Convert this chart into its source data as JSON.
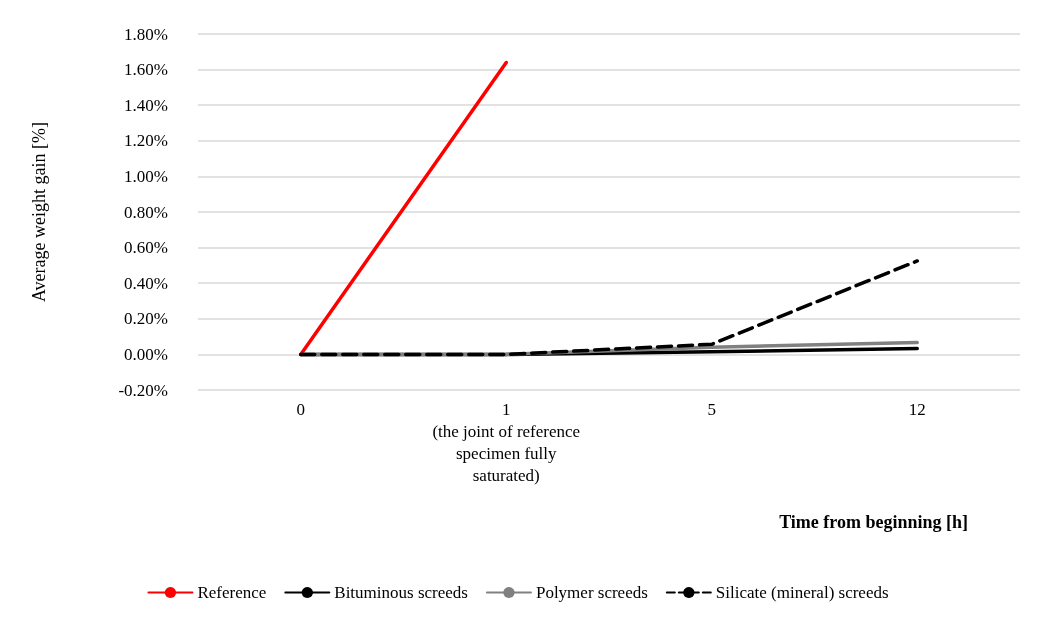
{
  "chart_data": {
    "type": "line",
    "xlabel": "Time from beginning [h]",
    "ylabel": "Average weight gain [%]",
    "categories": [
      "0",
      "1\n(the joint of reference\nspecimen fully\nsaturated)",
      "5",
      "12"
    ],
    "series": [
      {
        "name": "Reference",
        "color": "#ff0000",
        "values": [
          0,
          1.64,
          null,
          null
        ],
        "line_style": "solid"
      },
      {
        "name": "Bituminous screeds",
        "color": "#000000",
        "values": [
          0,
          0,
          0.015,
          0.033
        ],
        "line_style": "solid"
      },
      {
        "name": "Polymer screeds",
        "color": "#808080",
        "values": [
          0,
          0,
          0.04,
          0.067
        ],
        "line_style": "solid"
      },
      {
        "name": "Silicate (mineral) screeds",
        "color": "#000000",
        "values": [
          0,
          0,
          0.057,
          0.525
        ],
        "line_style": "dashed"
      }
    ],
    "ylim": [
      -0.2,
      1.8
    ],
    "yticks": [
      {
        "value": -0.2,
        "label": "-0.20%"
      },
      {
        "value": 0,
        "label": "0.00%"
      },
      {
        "value": 0.2,
        "label": "0.20%"
      },
      {
        "value": 0.4,
        "label": "0.40%"
      },
      {
        "value": 0.6,
        "label": "0.60%"
      },
      {
        "value": 0.8,
        "label": "0.80%"
      },
      {
        "value": 1,
        "label": "1.00%"
      },
      {
        "value": 1.2,
        "label": "1.20%"
      },
      {
        "value": 1.4,
        "label": "1.40%"
      },
      {
        "value": 1.6,
        "label": "1.60%"
      },
      {
        "value": 1.8,
        "label": "1.80%"
      }
    ],
    "grid": "y",
    "legend": "bottom",
    "marker": "none"
  }
}
